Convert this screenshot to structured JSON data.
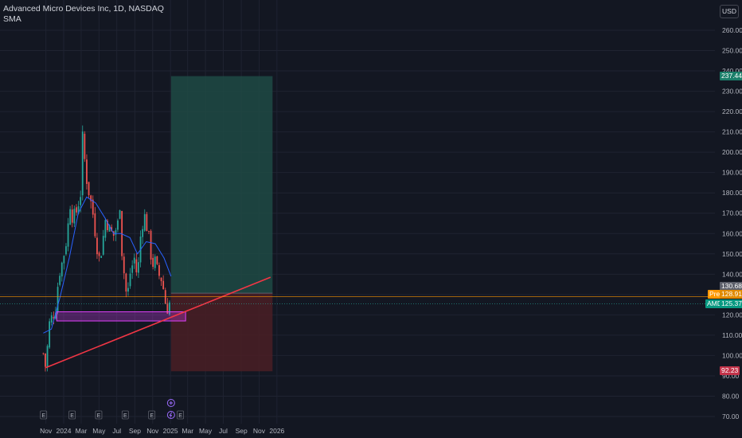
{
  "header": {
    "title": "Advanced Micro Devices Inc, 1D, NASDAQ",
    "indicator": "SMA"
  },
  "currency_button": "USD",
  "badges": {
    "target": "237.44",
    "stop_upper": "130.68",
    "pre_label": "Pre",
    "pre_value": "128.91",
    "ticker": "AMD",
    "last": "125.37",
    "stop_lower": "92.23"
  },
  "colors": {
    "background": "#131722",
    "up": "#26a69a",
    "down": "#ef5350",
    "sma": "#2962ff",
    "profit_zone": "#1e4a44",
    "loss_zone": "#4a1e25",
    "trendline": "#f23645",
    "support_box": "#e040fb",
    "pre_line": "#ff9800"
  },
  "chart_data": {
    "type": "candlestick",
    "ylim": [
      68,
      268
    ],
    "y_ticks": [
      70,
      80,
      90,
      100,
      110,
      120,
      130,
      140,
      150,
      160,
      170,
      180,
      190,
      200,
      210,
      220,
      230,
      240,
      250,
      260
    ],
    "x_tick_labels": [
      "Nov",
      "2024",
      "Mar",
      "May",
      "Jul",
      "Sep",
      "Nov",
      "2025",
      "Mar",
      "May",
      "Jul",
      "Sep",
      "Nov",
      "2026"
    ],
    "price_path": [
      [
        "2023-10-23",
        101
      ],
      [
        "2023-10-31",
        94
      ],
      [
        "2023-11-14",
        117
      ],
      [
        "2023-11-30",
        121
      ],
      [
        "2023-12-07",
        125
      ],
      [
        "2023-12-14",
        139
      ],
      [
        "2023-12-29",
        147
      ],
      [
        "2024-01-12",
        158
      ],
      [
        "2024-01-24",
        176
      ],
      [
        "2024-02-01",
        167
      ],
      [
        "2024-02-14",
        171
      ],
      [
        "2024-02-28",
        180
      ],
      [
        "2024-03-07",
        211
      ],
      [
        "2024-03-15",
        191
      ],
      [
        "2024-03-28",
        180
      ],
      [
        "2024-04-10",
        170
      ],
      [
        "2024-04-30",
        147
      ],
      [
        "2024-05-10",
        152
      ],
      [
        "2024-05-24",
        168
      ],
      [
        "2024-06-05",
        162
      ],
      [
        "2024-06-20",
        159
      ],
      [
        "2024-07-05",
        165
      ],
      [
        "2024-07-10",
        180
      ],
      [
        "2024-07-19",
        150
      ],
      [
        "2024-08-05",
        127
      ],
      [
        "2024-08-15",
        140
      ],
      [
        "2024-08-30",
        148
      ],
      [
        "2024-09-10",
        138
      ],
      [
        "2024-09-20",
        158
      ],
      [
        "2024-10-02",
        170
      ],
      [
        "2024-10-10",
        165
      ],
      [
        "2024-10-22",
        155
      ],
      [
        "2024-10-30",
        144
      ],
      [
        "2024-11-08",
        147
      ],
      [
        "2024-11-20",
        140
      ],
      [
        "2024-12-04",
        137
      ],
      [
        "2024-12-12",
        128
      ],
      [
        "2024-12-20",
        122
      ],
      [
        "2024-12-27",
        126
      ],
      [
        "2025-01-03",
        125.37
      ]
    ],
    "sma_path": [
      [
        "2023-10-23",
        111
      ],
      [
        "2023-11-20",
        113
      ],
      [
        "2023-12-20",
        129
      ],
      [
        "2024-01-20",
        148
      ],
      [
        "2024-02-20",
        170
      ],
      [
        "2024-03-20",
        178
      ],
      [
        "2024-04-20",
        175
      ],
      [
        "2024-05-20",
        168
      ],
      [
        "2024-06-20",
        160
      ],
      [
        "2024-07-15",
        160
      ],
      [
        "2024-08-15",
        158
      ],
      [
        "2024-09-10",
        150
      ],
      [
        "2024-10-10",
        156
      ],
      [
        "2024-11-10",
        155
      ],
      [
        "2024-12-10",
        148
      ],
      [
        "2025-01-03",
        139
      ]
    ],
    "annotations": {
      "long_position": {
        "entry": 130.68,
        "target": 237.44,
        "stop": 92.23,
        "from": "2025-01-03",
        "to": "2025-12-17"
      },
      "trendline": {
        "start": [
          "2023-10-31",
          94
        ],
        "end": [
          "2025-12-10",
          138.5
        ]
      },
      "support_box": {
        "top": 121.5,
        "bottom": 117,
        "from": "2023-12-08",
        "to": "2025-02-22"
      },
      "pre_market": 128.91,
      "last_price": 125.37
    },
    "events": [
      {
        "date": "2023-10-24",
        "label": "E"
      },
      {
        "date": "2024-01-30",
        "label": "E"
      },
      {
        "date": "2024-04-30",
        "label": "E"
      },
      {
        "date": "2024-07-30",
        "label": "E"
      },
      {
        "date": "2024-10-29",
        "label": "E"
      },
      {
        "date": "2025-02-04",
        "label": "E"
      }
    ]
  }
}
